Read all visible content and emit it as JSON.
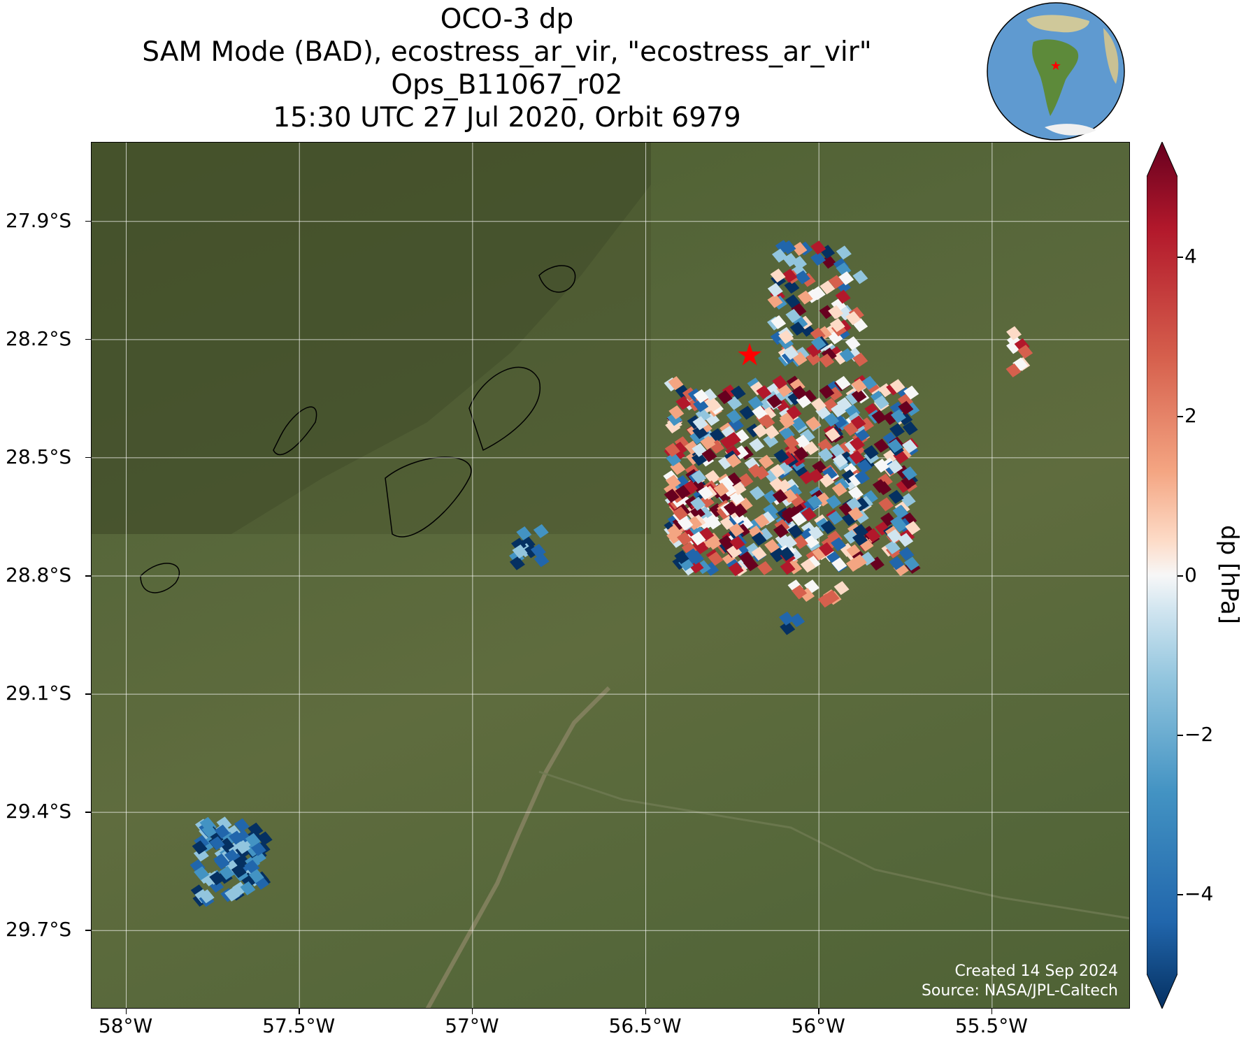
{
  "title": {
    "line1": "OCO-3 dp",
    "line2": "SAM Mode (BAD), ecostress_ar_vir, \"ecostress_ar_vir\"",
    "line3": "Ops_B11067_r02",
    "line4": "15:30 UTC 27 Jul 2020, Orbit 6979"
  },
  "axes": {
    "lat_labels": [
      "27.9°S",
      "28.2°S",
      "28.5°S",
      "28.8°S",
      "29.1°S",
      "29.4°S",
      "29.7°S"
    ],
    "lon_labels": [
      "58°W",
      "57.5°W",
      "57°W",
      "56.5°W",
      "56°W",
      "55.5°W"
    ],
    "lat_values": [
      -27.9,
      -28.2,
      -28.5,
      -28.8,
      -29.1,
      -29.4,
      -29.7
    ],
    "lon_values": [
      -58.0,
      -57.5,
      -57.0,
      -56.5,
      -56.0,
      -55.5
    ],
    "lat_range": [
      -27.7,
      -29.9
    ],
    "lon_range": [
      -58.1,
      -55.1
    ]
  },
  "credit": {
    "created": "Created 14 Sep 2024",
    "source": "Source: NASA/JPL-Caltech"
  },
  "colorbar": {
    "label": "dp [hPa]",
    "ticks": [
      "4",
      "2",
      "0",
      "−2",
      "−4"
    ],
    "tick_values": [
      4,
      2,
      0,
      -2,
      -4
    ],
    "range": [
      -5,
      5
    ],
    "colormap": "RdBu_r",
    "extend": "both"
  },
  "target": {
    "lat": -28.24,
    "lon": -56.2,
    "marker": "red-star"
  },
  "inset_globe": {
    "marker": "red-star",
    "region": "South America"
  },
  "colors": {
    "background_land": "#55673a",
    "grid": "#ffffff",
    "credit_text": "#ffffff",
    "target_marker": "#ff0000"
  }
}
